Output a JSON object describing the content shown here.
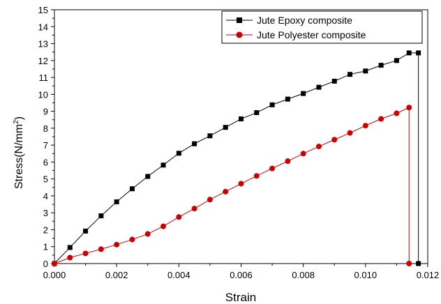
{
  "chart_data": {
    "type": "line",
    "title": "",
    "xlabel": "Strain",
    "ylabel_main": "Stress(N/mm",
    "ylabel_sup": "2",
    "ylabel_close": ")",
    "xlim": [
      0,
      0.012
    ],
    "ylim": [
      0,
      15
    ],
    "x_ticks": [
      "0.000",
      "0.002",
      "0.004",
      "0.006",
      "0.008",
      "0.010",
      "0.012"
    ],
    "x_tick_values": [
      0,
      0.002,
      0.004,
      0.006,
      0.008,
      0.01,
      0.012
    ],
    "y_ticks": [
      "0",
      "1",
      "2",
      "3",
      "4",
      "5",
      "6",
      "7",
      "8",
      "9",
      "10",
      "11",
      "12",
      "13",
      "14",
      "15"
    ],
    "y_tick_values": [
      0,
      1,
      2,
      3,
      4,
      5,
      6,
      7,
      8,
      9,
      10,
      11,
      12,
      13,
      14,
      15
    ],
    "grid": false,
    "legend_position": "top-right",
    "series": [
      {
        "name": "Jute Epoxy composite",
        "color": "#000000",
        "marker": "square",
        "points": [
          [
            0,
            0
          ],
          [
            0.0005,
            0.95
          ],
          [
            0.001,
            1.92
          ],
          [
            0.0015,
            2.82
          ],
          [
            0.002,
            3.65
          ],
          [
            0.0025,
            4.42
          ],
          [
            0.003,
            5.15
          ],
          [
            0.0035,
            5.82
          ],
          [
            0.004,
            6.52
          ],
          [
            0.0045,
            7.08
          ],
          [
            0.005,
            7.55
          ],
          [
            0.0055,
            8.05
          ],
          [
            0.006,
            8.55
          ],
          [
            0.0065,
            8.92
          ],
          [
            0.007,
            9.38
          ],
          [
            0.0075,
            9.72
          ],
          [
            0.008,
            10.05
          ],
          [
            0.0085,
            10.42
          ],
          [
            0.009,
            10.78
          ],
          [
            0.0095,
            11.18
          ],
          [
            0.01,
            11.38
          ],
          [
            0.0105,
            11.72
          ],
          [
            0.011,
            12.0
          ],
          [
            0.0114,
            12.45
          ],
          [
            0.0117,
            12.45
          ],
          [
            0.0117,
            0
          ]
        ]
      },
      {
        "name": "Jute Polyester composite",
        "color": "#cc0000",
        "marker": "circle",
        "points": [
          [
            0,
            0
          ],
          [
            0.0005,
            0.35
          ],
          [
            0.001,
            0.6
          ],
          [
            0.0015,
            0.85
          ],
          [
            0.002,
            1.12
          ],
          [
            0.0025,
            1.42
          ],
          [
            0.003,
            1.75
          ],
          [
            0.0035,
            2.2
          ],
          [
            0.004,
            2.75
          ],
          [
            0.0045,
            3.25
          ],
          [
            0.005,
            3.78
          ],
          [
            0.0055,
            4.25
          ],
          [
            0.006,
            4.72
          ],
          [
            0.0065,
            5.18
          ],
          [
            0.007,
            5.62
          ],
          [
            0.0075,
            6.05
          ],
          [
            0.008,
            6.5
          ],
          [
            0.0085,
            6.92
          ],
          [
            0.009,
            7.32
          ],
          [
            0.0095,
            7.72
          ],
          [
            0.01,
            8.15
          ],
          [
            0.0105,
            8.55
          ],
          [
            0.011,
            8.88
          ],
          [
            0.0114,
            9.22
          ],
          [
            0.0114,
            0
          ]
        ]
      }
    ]
  }
}
